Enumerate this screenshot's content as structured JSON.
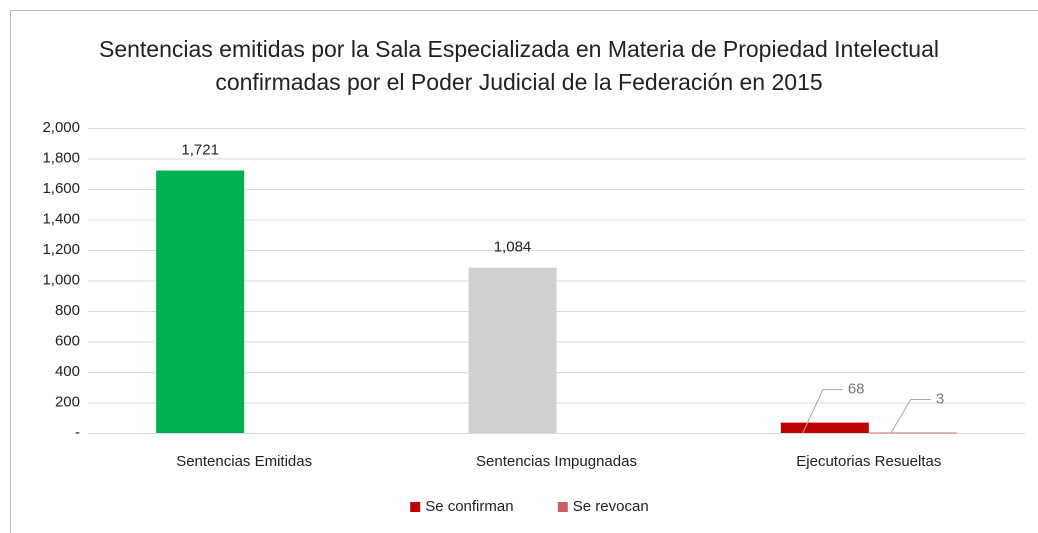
{
  "chart_data": {
    "type": "bar",
    "title": "Sentencias emitidas por la Sala Especializada en Materia de Propiedad Intelectual confirmadas por el Poder Judicial de la Federación en 2015",
    "categories": [
      "Sentencias Emitidas",
      "Sentencias Impugnadas",
      "Ejecutorias Resueltas"
    ],
    "series": [
      {
        "name": "Se confirman",
        "color": "#c00000",
        "point_colors": [
          "#00b050",
          "#d0d0d0",
          "#c00000"
        ],
        "values": [
          1721,
          1084,
          68
        ],
        "value_labels": [
          "1,721",
          "1,084",
          "68"
        ]
      },
      {
        "name": "Se revocan",
        "color": "#c9605e",
        "values": [
          null,
          null,
          3
        ]
      }
    ],
    "ylim": [
      0,
      2000
    ],
    "yticks": [
      {
        "value": 0,
        "label": "-"
      },
      200,
      400,
      600,
      800,
      {
        "value": 1000,
        "label": "1,000"
      },
      {
        "value": 1200,
        "label": "1,200"
      },
      {
        "value": 1400,
        "label": "1,400"
      },
      {
        "value": 1600,
        "label": "1,600"
      },
      {
        "value": 1800,
        "label": "1,800"
      },
      {
        "value": 2000,
        "label": "2,000"
      }
    ],
    "grid": true,
    "legend": "bottom"
  }
}
